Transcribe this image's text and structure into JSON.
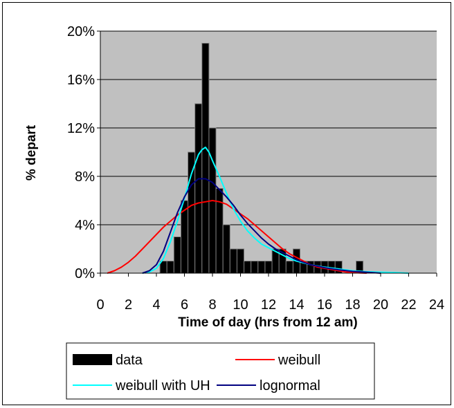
{
  "chart_data": {
    "type": "bar+line",
    "xlabel": "Time of day (hrs from 12 am)",
    "ylabel": "% depart",
    "xlim": [
      0,
      24
    ],
    "ylim": [
      0,
      20
    ],
    "x_ticks": [
      0,
      2,
      4,
      6,
      8,
      10,
      12,
      14,
      16,
      18,
      20,
      22,
      24
    ],
    "y_ticks": [
      {
        "value": 0,
        "label": "0%"
      },
      {
        "value": 4,
        "label": "4%"
      },
      {
        "value": 8,
        "label": "8%"
      },
      {
        "value": 12,
        "label": "12%"
      },
      {
        "value": 16,
        "label": "16%"
      },
      {
        "value": 20,
        "label": "20%"
      }
    ],
    "grid": "horizontal",
    "plot_background": "#c0c0c0",
    "bar_width_hours": 0.5,
    "bars": {
      "name": "data",
      "color": "#000000",
      "points": [
        {
          "x": 4.5,
          "y": 1
        },
        {
          "x": 5.0,
          "y": 1
        },
        {
          "x": 5.5,
          "y": 3
        },
        {
          "x": 6.0,
          "y": 6
        },
        {
          "x": 6.5,
          "y": 10
        },
        {
          "x": 7.0,
          "y": 14
        },
        {
          "x": 7.5,
          "y": 19
        },
        {
          "x": 8.0,
          "y": 12
        },
        {
          "x": 8.5,
          "y": 7
        },
        {
          "x": 9.0,
          "y": 4
        },
        {
          "x": 9.5,
          "y": 2
        },
        {
          "x": 10.0,
          "y": 2
        },
        {
          "x": 10.5,
          "y": 1
        },
        {
          "x": 11.0,
          "y": 1
        },
        {
          "x": 11.5,
          "y": 1
        },
        {
          "x": 12.0,
          "y": 1
        },
        {
          "x": 12.5,
          "y": 2
        },
        {
          "x": 13.0,
          "y": 2
        },
        {
          "x": 13.5,
          "y": 1
        },
        {
          "x": 14.0,
          "y": 2
        },
        {
          "x": 14.5,
          "y": 1
        },
        {
          "x": 15.0,
          "y": 1
        },
        {
          "x": 15.5,
          "y": 1
        },
        {
          "x": 16.0,
          "y": 1
        },
        {
          "x": 16.5,
          "y": 1
        },
        {
          "x": 17.0,
          "y": 1
        },
        {
          "x": 18.5,
          "y": 1
        }
      ]
    },
    "series": [
      {
        "name": "weibull",
        "color": "#ff0000",
        "x": [
          0.5,
          1,
          1.5,
          2,
          2.5,
          3,
          3.5,
          4,
          4.5,
          5,
          5.5,
          6,
          6.5,
          7,
          7.5,
          8,
          8.5,
          9,
          9.5,
          10,
          10.5,
          11,
          11.5,
          12,
          12.5,
          13,
          13.5,
          14,
          14.5,
          15,
          15.5,
          16,
          16.5,
          17,
          17.5,
          18,
          18.5,
          19
        ],
        "y": [
          0,
          0.2,
          0.5,
          0.9,
          1.4,
          2.0,
          2.6,
          3.2,
          3.8,
          4.3,
          4.8,
          5.2,
          5.6,
          5.8,
          5.9,
          6.0,
          5.9,
          5.7,
          5.3,
          4.9,
          4.5,
          4.0,
          3.5,
          3.0,
          2.5,
          2.0,
          1.6,
          1.3,
          1.0,
          0.7,
          0.5,
          0.4,
          0.3,
          0.2,
          0.1,
          0.05,
          0.02,
          0
        ]
      },
      {
        "name": "weibull with UH",
        "color": "#00ffff",
        "x": [
          3,
          3.5,
          4,
          4.5,
          5,
          5.5,
          6,
          6.5,
          7,
          7.25,
          7.5,
          7.75,
          8,
          8.5,
          9,
          9.5,
          10,
          10.5,
          11,
          11.5,
          12,
          12.5,
          13,
          13.5,
          14,
          15,
          16,
          17,
          18,
          19,
          20,
          21,
          22
        ],
        "y": [
          0,
          0.1,
          0.4,
          1.2,
          2.6,
          4.3,
          6.2,
          8.2,
          9.8,
          10.2,
          10.4,
          10.0,
          9.3,
          8.0,
          6.6,
          5.3,
          4.3,
          3.5,
          2.9,
          2.4,
          2.1,
          1.8,
          1.5,
          1.2,
          1.0,
          0.7,
          0.5,
          0.35,
          0.2,
          0.12,
          0.08,
          0.05,
          0
        ]
      },
      {
        "name": "lognormal",
        "color": "#000080",
        "x": [
          3,
          3.5,
          4,
          4.5,
          5,
          5.5,
          6,
          6.5,
          7,
          7.5,
          8,
          8.5,
          9,
          9.5,
          10,
          10.5,
          11,
          11.5,
          12,
          12.5,
          13,
          13.5,
          14,
          15,
          16,
          17,
          18,
          19,
          20
        ],
        "y": [
          0,
          0.2,
          0.7,
          1.8,
          3.4,
          5.0,
          6.3,
          7.3,
          7.8,
          7.8,
          7.5,
          6.9,
          6.3,
          5.6,
          4.8,
          4.1,
          3.5,
          2.9,
          2.4,
          2.0,
          1.7,
          1.4,
          1.1,
          0.7,
          0.45,
          0.28,
          0.15,
          0.08,
          0
        ]
      }
    ],
    "legend": {
      "position": "bottom",
      "entries": [
        "data",
        "weibull",
        "weibull with UH",
        "lognormal"
      ]
    }
  }
}
